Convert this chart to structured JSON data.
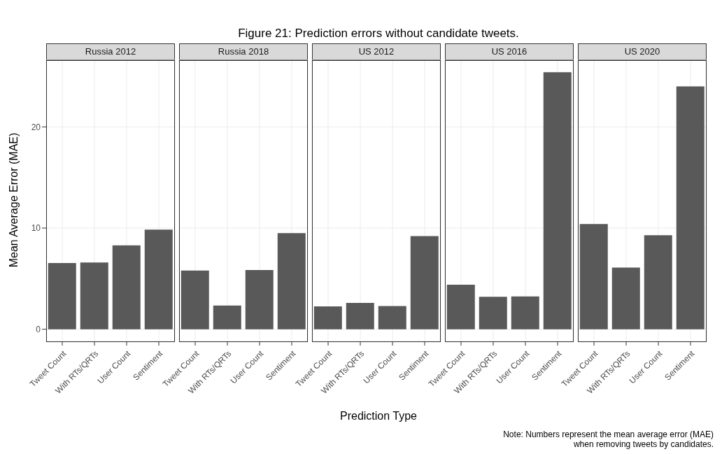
{
  "chart_data": [
    {
      "type": "bar",
      "title": "Russia 2012",
      "ylabel": "Mean Average Error (MAE)",
      "annotations": [
        "Figure 21: Prediction errors without candidate tweets.",
        "Note: Numbers represent the mean average error (MAE)\nwhen removing tweets by candidates."
      ],
      "categories": [
        "Tweet Count",
        "With RTs/QRTs",
        "User Count",
        "Sentiment"
      ],
      "values": [
        6.55,
        6.6,
        8.3,
        9.85
      ],
      "color": "#595959",
      "ylim": [
        -1.2,
        26.6
      ],
      "yticks": [
        0,
        10,
        20
      ],
      "grid": true
    },
    {
      "type": "bar",
      "title": "Russia 2018",
      "categories": [
        "Tweet Count",
        "With RTs/QRTs",
        "User Count",
        "Sentiment"
      ],
      "values": [
        5.8,
        2.35,
        5.85,
        9.5
      ],
      "color": "#595959",
      "ylim": [
        -1.2,
        26.6
      ],
      "yticks": [
        0,
        10,
        20
      ],
      "grid": true,
      "tick_labels": "x"
    },
    {
      "type": "bar",
      "title": "US 2012",
      "xlabel": "Prediction Type",
      "categories": [
        "Tweet Count",
        "With RTs/QRTs",
        "User Count",
        "Sentiment"
      ],
      "values": [
        2.25,
        2.6,
        2.3,
        9.2
      ],
      "color": "#595959",
      "ylim": [
        -1.2,
        26.6
      ],
      "yticks": [
        0,
        10,
        20
      ],
      "grid": true,
      "tick_labels": "x"
    },
    {
      "type": "bar",
      "title": "US 2016",
      "categories": [
        "Tweet Count",
        "With RTs/QRTs",
        "User Count",
        "Sentiment"
      ],
      "values": [
        4.4,
        3.2,
        3.25,
        25.4
      ],
      "color": "#595959",
      "ylim": [
        -1.2,
        26.6
      ],
      "yticks": [
        0,
        10,
        20
      ],
      "grid": true,
      "tick_labels": "x"
    },
    {
      "type": "bar",
      "title": "US 2020",
      "categories": [
        "Tweet Count",
        "With RTs/QRTs",
        "User Count",
        "Sentiment"
      ],
      "values": [
        10.4,
        6.1,
        9.3,
        24
      ],
      "color": "#595959",
      "ylim": [
        -1.2,
        26.6
      ],
      "yticks": [
        0,
        10,
        20
      ],
      "grid": true,
      "tick_labels": "x"
    }
  ]
}
